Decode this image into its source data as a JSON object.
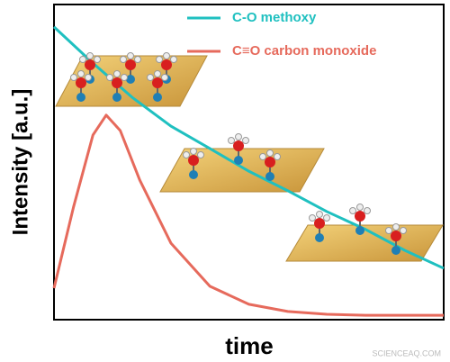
{
  "chart_data": {
    "type": "line",
    "x_label": "time",
    "y_label": "Intensity [a.u.]",
    "xlim": [
      0,
      100
    ],
    "ylim": [
      0,
      100
    ],
    "series": [
      {
        "name": "C-O methoxy",
        "color": "#1fc0c0",
        "x": [
          0,
          10,
          20,
          30,
          40,
          50,
          60,
          70,
          80,
          90,
          100
        ],
        "values": [
          92.9,
          81.4,
          70.6,
          61.4,
          54.3,
          47.1,
          40.9,
          34.3,
          28.6,
          22,
          16.3
        ]
      },
      {
        "name": "C≡O carbon monoxide",
        "color": "#e66a5c",
        "x": [
          0,
          5,
          10,
          13.4,
          17,
          22,
          30,
          40,
          50,
          60,
          70,
          80,
          100
        ],
        "values": [
          10,
          35.7,
          58.6,
          64.9,
          60,
          44.3,
          24.3,
          10.6,
          4.9,
          2.6,
          1.7,
          1.4,
          1.4
        ]
      }
    ],
    "watermark": "SCIENCEAQ.COM"
  }
}
